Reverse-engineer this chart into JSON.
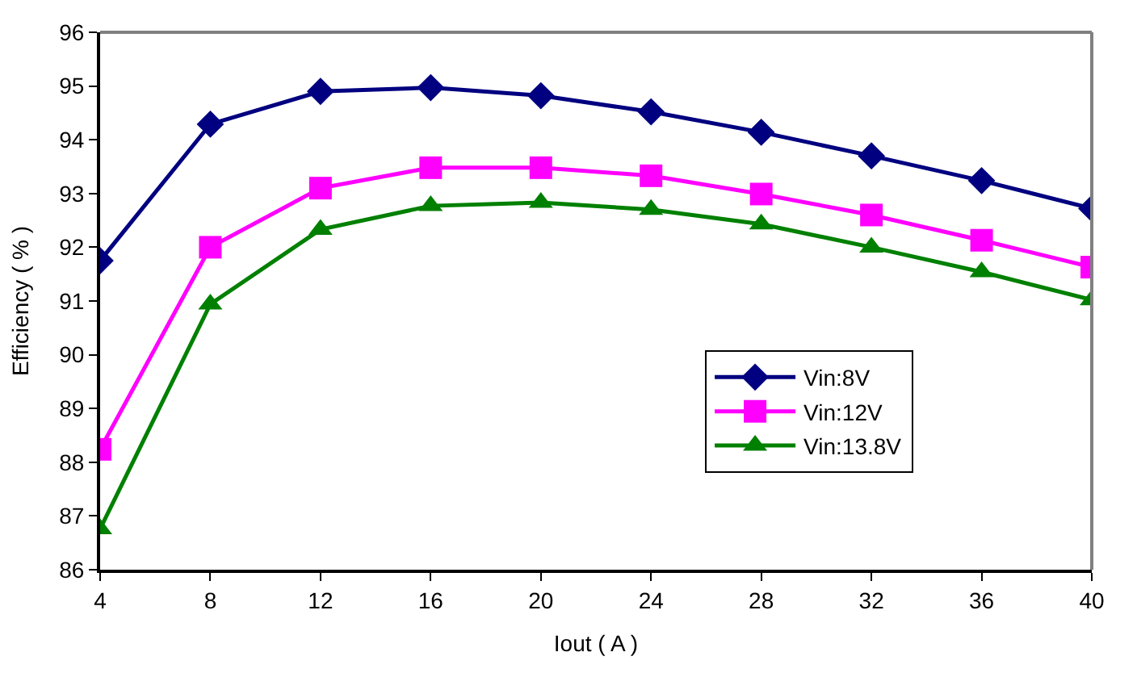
{
  "chart_data": {
    "type": "line",
    "xlabel": "Iout ( A )",
    "ylabel": "Efficiency ( % )",
    "x": [
      4,
      8,
      12,
      16,
      20,
      24,
      28,
      32,
      36,
      40
    ],
    "series": [
      {
        "name": "Vin:8V",
        "color": "#000080",
        "marker": "diamond",
        "values": [
          91.75,
          94.29,
          94.9,
          94.97,
          94.82,
          94.52,
          94.14,
          93.7,
          93.24,
          92.72
        ]
      },
      {
        "name": "Vin:12V",
        "color": "#ff00ff",
        "marker": "square",
        "values": [
          88.24,
          92.0,
          93.1,
          93.48,
          93.48,
          93.33,
          92.99,
          92.6,
          92.13,
          91.63
        ]
      },
      {
        "name": "Vin:13.8V",
        "color": "#008000",
        "marker": "triangle",
        "values": [
          86.76,
          90.94,
          92.33,
          92.77,
          92.83,
          92.7,
          92.43,
          92.0,
          91.54,
          91.02
        ]
      }
    ],
    "xlim": [
      4,
      40
    ],
    "xticks": [
      4,
      8,
      12,
      16,
      20,
      24,
      28,
      32,
      36,
      40
    ],
    "ylim": [
      86,
      96
    ],
    "yticks": [
      86,
      87,
      88,
      89,
      90,
      91,
      92,
      93,
      94,
      95,
      96
    ],
    "legend": "bottom right",
    "line_style": "solid"
  }
}
